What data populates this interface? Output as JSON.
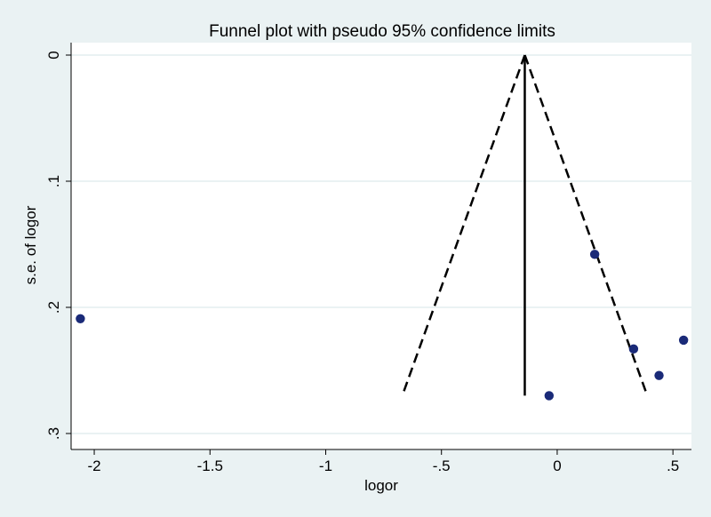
{
  "chart_data": {
    "type": "scatter",
    "title": "Funnel plot with pseudo 95% confidence limits",
    "xlabel": "logor",
    "ylabel": "s.e. of logor",
    "xlim": [
      -2.1,
      0.58
    ],
    "ylim": [
      0,
      0.31
    ],
    "y_reversed": true,
    "grid": true,
    "x_ticks": [
      {
        "value": -2,
        "label": "-2"
      },
      {
        "value": -1.5,
        "label": "-1.5"
      },
      {
        "value": -1,
        "label": "-1"
      },
      {
        "value": -0.5,
        "label": "-.5"
      },
      {
        "value": 0,
        "label": "0"
      },
      {
        "value": 0.5,
        "label": ".5"
      }
    ],
    "y_ticks": [
      {
        "value": 0,
        "label": "0"
      },
      {
        "value": 0.1,
        "label": ".1"
      },
      {
        "value": 0.2,
        "label": ".2"
      },
      {
        "value": 0.3,
        "label": ".3"
      }
    ],
    "points": [
      {
        "x": -2.06,
        "y": 0.209
      },
      {
        "x": 0.162,
        "y": 0.158
      },
      {
        "x": 0.33,
        "y": 0.233
      },
      {
        "x": 0.546,
        "y": 0.226
      },
      {
        "x": 0.44,
        "y": 0.254
      },
      {
        "x": -0.035,
        "y": 0.27
      }
    ],
    "pooled_estimate": -0.14,
    "funnel_max_se": 0.27,
    "colors": {
      "background": "#eaf2f3",
      "plot_area": "#ffffff",
      "grid": "#eaf2f3",
      "point": "#1a2a78",
      "line": "#000000"
    }
  }
}
